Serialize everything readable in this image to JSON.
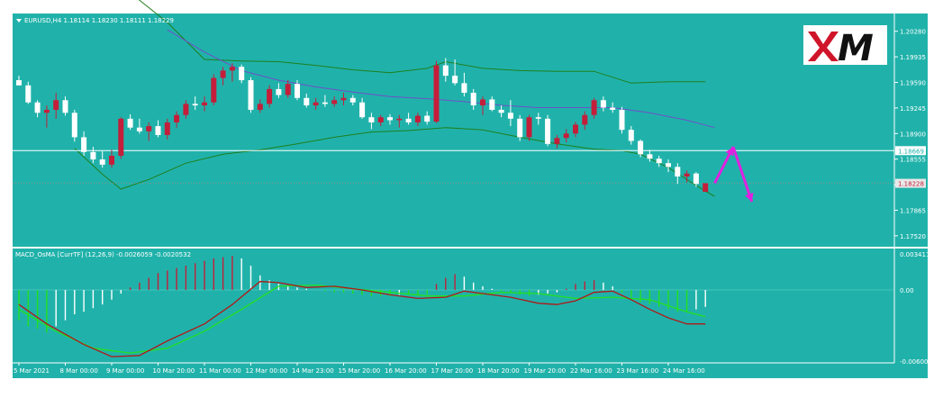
{
  "colors": {
    "background": "#20b2aa",
    "frame": "#ffffff",
    "bull_candle": "#c41e3a",
    "bear_candle": "#ffffff",
    "bollinger": "#1e7f1e",
    "moving_average": "#6f4fc9",
    "macd_line": "#b01818",
    "signal_line": "#22e022",
    "arrow": "#e020e0",
    "logo_bg": "#ffffff",
    "logo_x": "#d0152a",
    "logo_text": "#111111"
  },
  "header": {
    "symbol_line": "EURUSD,H4  1.18114 1.18230 1.18111 1.18229",
    "dropdown_icon": "triangle-down-icon"
  },
  "logo": {
    "text_x": "X",
    "text_m": "M"
  },
  "price_axis": {
    "ticks": [
      "1.20280",
      "1.19935",
      "1.19590",
      "1.19245",
      "1.18900",
      "1.18555",
      "1.18210",
      "1.17865",
      "1.17520"
    ],
    "current_price_label": "1.18228",
    "hline_price_label": "1.18669"
  },
  "macd": {
    "label": "MACD_OsMA [CurrTF] (12,26,9) -0.0026059 -0.0020532",
    "axis_ticks": [
      "0.0034113",
      "0.00",
      "-0.0060096"
    ]
  },
  "time_axis": {
    "labels": [
      "5 Mar 2021",
      "8 Mar 00:00",
      "9 Mar 00:00",
      "10 Mar 20:00",
      "11 Mar 00:00",
      "12 Mar 00:00",
      "14 Mar 23:00",
      "15 Mar 20:00",
      "16 Mar 20:00",
      "17 Mar 20:00",
      "18 Mar 20:00",
      "19 Mar 20:00",
      "22 Mar 16:00",
      "23 Mar 16:00",
      "24 Mar 16:00"
    ]
  },
  "chart_data": {
    "type": "candlestick",
    "symbol": "EURUSD",
    "timeframe": "H4",
    "last_bar": {
      "open": 1.18114,
      "high": 1.1823,
      "low": 1.18111,
      "close": 1.18229
    },
    "price_ylim": [
      1.1736,
      1.2052
    ],
    "horizontal_line": 1.18669,
    "current_price": 1.18228,
    "candles": [
      {
        "o": 1.1962,
        "h": 1.1968,
        "l": 1.1955,
        "c": 1.1955
      },
      {
        "o": 1.1955,
        "h": 1.196,
        "l": 1.193,
        "c": 1.1932
      },
      {
        "o": 1.1932,
        "h": 1.1935,
        "l": 1.1912,
        "c": 1.1918
      },
      {
        "o": 1.1918,
        "h": 1.1928,
        "l": 1.1898,
        "c": 1.1922
      },
      {
        "o": 1.1922,
        "h": 1.1945,
        "l": 1.191,
        "c": 1.1935
      },
      {
        "o": 1.1935,
        "h": 1.194,
        "l": 1.1914,
        "c": 1.1918
      },
      {
        "o": 1.1918,
        "h": 1.1922,
        "l": 1.1879,
        "c": 1.1885
      },
      {
        "o": 1.1885,
        "h": 1.1893,
        "l": 1.186,
        "c": 1.1865
      },
      {
        "o": 1.1865,
        "h": 1.1872,
        "l": 1.185,
        "c": 1.1855
      },
      {
        "o": 1.1855,
        "h": 1.1866,
        "l": 1.1844,
        "c": 1.1848
      },
      {
        "o": 1.1848,
        "h": 1.1868,
        "l": 1.1844,
        "c": 1.186
      },
      {
        "o": 1.186,
        "h": 1.1912,
        "l": 1.1856,
        "c": 1.191
      },
      {
        "o": 1.191,
        "h": 1.1916,
        "l": 1.1895,
        "c": 1.1898
      },
      {
        "o": 1.1898,
        "h": 1.191,
        "l": 1.189,
        "c": 1.1893
      },
      {
        "o": 1.1893,
        "h": 1.1905,
        "l": 1.188,
        "c": 1.19
      },
      {
        "o": 1.19,
        "h": 1.1908,
        "l": 1.1885,
        "c": 1.1888
      },
      {
        "o": 1.1888,
        "h": 1.191,
        "l": 1.1882,
        "c": 1.1905
      },
      {
        "o": 1.1905,
        "h": 1.192,
        "l": 1.1898,
        "c": 1.1915
      },
      {
        "o": 1.1915,
        "h": 1.1935,
        "l": 1.191,
        "c": 1.193
      },
      {
        "o": 1.193,
        "h": 1.194,
        "l": 1.1922,
        "c": 1.1928
      },
      {
        "o": 1.1928,
        "h": 1.194,
        "l": 1.192,
        "c": 1.1932
      },
      {
        "o": 1.1932,
        "h": 1.197,
        "l": 1.1928,
        "c": 1.1965
      },
      {
        "o": 1.1965,
        "h": 1.198,
        "l": 1.1955,
        "c": 1.1975
      },
      {
        "o": 1.1975,
        "h": 1.1985,
        "l": 1.196,
        "c": 1.198
      },
      {
        "o": 1.198,
        "h": 1.1983,
        "l": 1.1958,
        "c": 1.1962
      },
      {
        "o": 1.1962,
        "h": 1.1966,
        "l": 1.1918,
        "c": 1.1922
      },
      {
        "o": 1.1922,
        "h": 1.1936,
        "l": 1.1918,
        "c": 1.193
      },
      {
        "o": 1.193,
        "h": 1.1955,
        "l": 1.1925,
        "c": 1.195
      },
      {
        "o": 1.195,
        "h": 1.1958,
        "l": 1.1938,
        "c": 1.1942
      },
      {
        "o": 1.1942,
        "h": 1.1962,
        "l": 1.1938,
        "c": 1.1957
      },
      {
        "o": 1.1957,
        "h": 1.1962,
        "l": 1.1935,
        "c": 1.1938
      },
      {
        "o": 1.1938,
        "h": 1.1944,
        "l": 1.1925,
        "c": 1.1928
      },
      {
        "o": 1.1928,
        "h": 1.1938,
        "l": 1.1922,
        "c": 1.1932
      },
      {
        "o": 1.1932,
        "h": 1.1942,
        "l": 1.1926,
        "c": 1.193
      },
      {
        "o": 1.193,
        "h": 1.194,
        "l": 1.1926,
        "c": 1.1935
      },
      {
        "o": 1.1935,
        "h": 1.1945,
        "l": 1.1928,
        "c": 1.1938
      },
      {
        "o": 1.1938,
        "h": 1.1942,
        "l": 1.1928,
        "c": 1.1932
      },
      {
        "o": 1.1932,
        "h": 1.1938,
        "l": 1.191,
        "c": 1.1912
      },
      {
        "o": 1.1912,
        "h": 1.1918,
        "l": 1.1896,
        "c": 1.1905
      },
      {
        "o": 1.1905,
        "h": 1.1915,
        "l": 1.19,
        "c": 1.1912
      },
      {
        "o": 1.1912,
        "h": 1.1916,
        "l": 1.1902,
        "c": 1.1908
      },
      {
        "o": 1.1908,
        "h": 1.1915,
        "l": 1.1898,
        "c": 1.191
      },
      {
        "o": 1.191,
        "h": 1.1918,
        "l": 1.1902,
        "c": 1.1905
      },
      {
        "o": 1.1905,
        "h": 1.1918,
        "l": 1.19,
        "c": 1.1914
      },
      {
        "o": 1.1914,
        "h": 1.192,
        "l": 1.1902,
        "c": 1.1906
      },
      {
        "o": 1.1906,
        "h": 1.1988,
        "l": 1.1904,
        "c": 1.1982
      },
      {
        "o": 1.1982,
        "h": 1.1992,
        "l": 1.196,
        "c": 1.1968
      },
      {
        "o": 1.1968,
        "h": 1.199,
        "l": 1.1955,
        "c": 1.1958
      },
      {
        "o": 1.1958,
        "h": 1.1972,
        "l": 1.194,
        "c": 1.1945
      },
      {
        "o": 1.1945,
        "h": 1.195,
        "l": 1.1922,
        "c": 1.1928
      },
      {
        "o": 1.1928,
        "h": 1.194,
        "l": 1.1915,
        "c": 1.1936
      },
      {
        "o": 1.1936,
        "h": 1.194,
        "l": 1.192,
        "c": 1.1922
      },
      {
        "o": 1.1922,
        "h": 1.1928,
        "l": 1.1912,
        "c": 1.1918
      },
      {
        "o": 1.1918,
        "h": 1.1935,
        "l": 1.19,
        "c": 1.191
      },
      {
        "o": 1.191,
        "h": 1.1915,
        "l": 1.188,
        "c": 1.1885
      },
      {
        "o": 1.1885,
        "h": 1.1915,
        "l": 1.188,
        "c": 1.1912
      },
      {
        "o": 1.1912,
        "h": 1.1918,
        "l": 1.1902,
        "c": 1.191
      },
      {
        "o": 1.191,
        "h": 1.1915,
        "l": 1.1873,
        "c": 1.1876
      },
      {
        "o": 1.1876,
        "h": 1.1888,
        "l": 1.187,
        "c": 1.1884
      },
      {
        "o": 1.1884,
        "h": 1.1896,
        "l": 1.1878,
        "c": 1.189
      },
      {
        "o": 1.189,
        "h": 1.1906,
        "l": 1.1885,
        "c": 1.1902
      },
      {
        "o": 1.1902,
        "h": 1.192,
        "l": 1.1895,
        "c": 1.1915
      },
      {
        "o": 1.1915,
        "h": 1.1938,
        "l": 1.191,
        "c": 1.1935
      },
      {
        "o": 1.1935,
        "h": 1.194,
        "l": 1.192,
        "c": 1.1925
      },
      {
        "o": 1.1925,
        "h": 1.1932,
        "l": 1.1918,
        "c": 1.1922
      },
      {
        "o": 1.1922,
        "h": 1.1926,
        "l": 1.189,
        "c": 1.1895
      },
      {
        "o": 1.1895,
        "h": 1.19,
        "l": 1.1875,
        "c": 1.188
      },
      {
        "o": 1.188,
        "h": 1.1882,
        "l": 1.1858,
        "c": 1.1862
      },
      {
        "o": 1.1862,
        "h": 1.1868,
        "l": 1.1852,
        "c": 1.1856
      },
      {
        "o": 1.1856,
        "h": 1.186,
        "l": 1.1845,
        "c": 1.185
      },
      {
        "o": 1.185,
        "h": 1.1855,
        "l": 1.1838,
        "c": 1.1845
      },
      {
        "o": 1.1845,
        "h": 1.185,
        "l": 1.1822,
        "c": 1.1832
      },
      {
        "o": 1.1832,
        "h": 1.184,
        "l": 1.1824,
        "c": 1.1836
      },
      {
        "o": 1.1836,
        "h": 1.1838,
        "l": 1.1818,
        "c": 1.1822
      },
      {
        "o": 1.18114,
        "h": 1.1823,
        "l": 1.18111,
        "c": 1.18229
      }
    ],
    "bollinger_upper": [
      {
        "i": 12,
        "v": 1.208
      },
      {
        "i": 16,
        "v": 1.204
      },
      {
        "i": 20,
        "v": 1.199
      },
      {
        "i": 24,
        "v": 1.1988
      },
      {
        "i": 28,
        "v": 1.1987
      },
      {
        "i": 32,
        "v": 1.1982
      },
      {
        "i": 36,
        "v": 1.1976
      },
      {
        "i": 40,
        "v": 1.1972
      },
      {
        "i": 44,
        "v": 1.1978
      },
      {
        "i": 46,
        "v": 1.1987
      },
      {
        "i": 50,
        "v": 1.1978
      },
      {
        "i": 54,
        "v": 1.1975
      },
      {
        "i": 58,
        "v": 1.1974
      },
      {
        "i": 62,
        "v": 1.1974
      },
      {
        "i": 64,
        "v": 1.1966
      },
      {
        "i": 66,
        "v": 1.1958
      },
      {
        "i": 70,
        "v": 1.196
      },
      {
        "i": 74,
        "v": 1.196
      }
    ],
    "bollinger_lower": [
      {
        "i": 6,
        "v": 1.187
      },
      {
        "i": 9,
        "v": 1.1835
      },
      {
        "i": 11,
        "v": 1.1815
      },
      {
        "i": 14,
        "v": 1.1828
      },
      {
        "i": 18,
        "v": 1.185
      },
      {
        "i": 22,
        "v": 1.1862
      },
      {
        "i": 26,
        "v": 1.1868
      },
      {
        "i": 30,
        "v": 1.1876
      },
      {
        "i": 34,
        "v": 1.1885
      },
      {
        "i": 38,
        "v": 1.1892
      },
      {
        "i": 42,
        "v": 1.1894
      },
      {
        "i": 46,
        "v": 1.1898
      },
      {
        "i": 50,
        "v": 1.1895
      },
      {
        "i": 54,
        "v": 1.1885
      },
      {
        "i": 58,
        "v": 1.1876
      },
      {
        "i": 62,
        "v": 1.1869
      },
      {
        "i": 65,
        "v": 1.1867
      },
      {
        "i": 67,
        "v": 1.1862
      },
      {
        "i": 70,
        "v": 1.1844
      },
      {
        "i": 73,
        "v": 1.182
      },
      {
        "i": 75,
        "v": 1.1805
      }
    ],
    "moving_average": [
      {
        "i": 16,
        "v": 1.203
      },
      {
        "i": 20,
        "v": 1.2
      },
      {
        "i": 24,
        "v": 1.1975
      },
      {
        "i": 28,
        "v": 1.1962
      },
      {
        "i": 32,
        "v": 1.1953
      },
      {
        "i": 36,
        "v": 1.1946
      },
      {
        "i": 40,
        "v": 1.194
      },
      {
        "i": 44,
        "v": 1.1937
      },
      {
        "i": 48,
        "v": 1.1933
      },
      {
        "i": 52,
        "v": 1.1928
      },
      {
        "i": 56,
        "v": 1.1925
      },
      {
        "i": 60,
        "v": 1.1925
      },
      {
        "i": 64,
        "v": 1.1925
      },
      {
        "i": 68,
        "v": 1.1918
      },
      {
        "i": 72,
        "v": 1.1908
      },
      {
        "i": 75,
        "v": 1.1898
      }
    ],
    "macd_ylim": [
      -0.0060096,
      0.0034113
    ],
    "macd_histogram": [
      -0.0025,
      -0.003,
      -0.0032,
      -0.0035,
      -0.003,
      -0.0025,
      -0.002,
      -0.0018,
      -0.0015,
      -0.0012,
      -0.0008,
      -0.0003,
      0.0002,
      0.0006,
      0.001,
      0.0014,
      0.0016,
      0.0018,
      0.002,
      0.0022,
      0.0024,
      0.0026,
      0.0027,
      0.0028,
      0.0026,
      0.002,
      0.0012,
      0.0008,
      0.0005,
      0.0003,
      0.0002,
      0.0001,
      0.0,
      -0.0001,
      -0.0002,
      -0.0002,
      -0.0003,
      -0.0004,
      -0.0005,
      -0.0005,
      -0.0005,
      -0.0004,
      -0.0004,
      -0.0004,
      -0.0004,
      0.0005,
      0.001,
      0.0013,
      0.0011,
      0.0006,
      0.0003,
      0.0001,
      -0.0001,
      -0.0002,
      -0.0004,
      -0.0005,
      -0.0004,
      -0.0003,
      -0.0002,
      0.0001,
      0.0005,
      0.0007,
      0.0008,
      0.0006,
      0.0003,
      -0.0002,
      -0.0006,
      -0.001,
      -0.0012,
      -0.0014,
      -0.0016,
      -0.0018,
      -0.0018,
      -0.0016,
      -0.0014
    ],
    "macd_line": [
      {
        "i": 0,
        "v": -0.0012
      },
      {
        "i": 3,
        "v": -0.0028
      },
      {
        "i": 7,
        "v": -0.0045
      },
      {
        "i": 10,
        "v": -0.0055
      },
      {
        "i": 13,
        "v": -0.0054
      },
      {
        "i": 16,
        "v": -0.0042
      },
      {
        "i": 20,
        "v": -0.0028
      },
      {
        "i": 23,
        "v": -0.0012
      },
      {
        "i": 26,
        "v": 0.0007
      },
      {
        "i": 28,
        "v": 0.0006
      },
      {
        "i": 31,
        "v": 0.0002
      },
      {
        "i": 34,
        "v": 0.0003
      },
      {
        "i": 37,
        "v": 0.0
      },
      {
        "i": 40,
        "v": -0.0004
      },
      {
        "i": 43,
        "v": -0.0007
      },
      {
        "i": 46,
        "v": -0.0006
      },
      {
        "i": 48,
        "v": -0.0001
      },
      {
        "i": 50,
        "v": -0.0003
      },
      {
        "i": 53,
        "v": -0.0006
      },
      {
        "i": 56,
        "v": -0.0011
      },
      {
        "i": 58,
        "v": -0.0012
      },
      {
        "i": 60,
        "v": -0.0009
      },
      {
        "i": 62,
        "v": -0.0002
      },
      {
        "i": 64,
        "v": -0.0001
      },
      {
        "i": 66,
        "v": -0.0008
      },
      {
        "i": 68,
        "v": -0.0016
      },
      {
        "i": 70,
        "v": -0.0023
      },
      {
        "i": 72,
        "v": -0.0028
      },
      {
        "i": 74,
        "v": -0.0028
      }
    ],
    "signal_line": [
      {
        "i": 0,
        "v": -0.0016
      },
      {
        "i": 4,
        "v": -0.0034
      },
      {
        "i": 8,
        "v": -0.0048
      },
      {
        "i": 12,
        "v": -0.0052
      },
      {
        "i": 16,
        "v": -0.0048
      },
      {
        "i": 20,
        "v": -0.0034
      },
      {
        "i": 24,
        "v": -0.0016
      },
      {
        "i": 28,
        "v": 0.0003
      },
      {
        "i": 32,
        "v": 0.0004
      },
      {
        "i": 36,
        "v": 0.0001
      },
      {
        "i": 40,
        "v": -0.0002
      },
      {
        "i": 44,
        "v": -0.0005
      },
      {
        "i": 48,
        "v": -0.0005
      },
      {
        "i": 52,
        "v": -0.0002
      },
      {
        "i": 56,
        "v": -0.0003
      },
      {
        "i": 60,
        "v": -0.0007
      },
      {
        "i": 64,
        "v": -0.0006
      },
      {
        "i": 68,
        "v": -0.0008
      },
      {
        "i": 72,
        "v": -0.0018
      },
      {
        "i": 74,
        "v": -0.0022
      }
    ],
    "forecast_arrows": [
      {
        "from_index": 75,
        "from_price": 1.1823,
        "to_index": 77,
        "to_price": 1.1872
      },
      {
        "from_index": 77,
        "from_price": 1.1872,
        "to_index": 79,
        "to_price": 1.1798
      }
    ]
  }
}
